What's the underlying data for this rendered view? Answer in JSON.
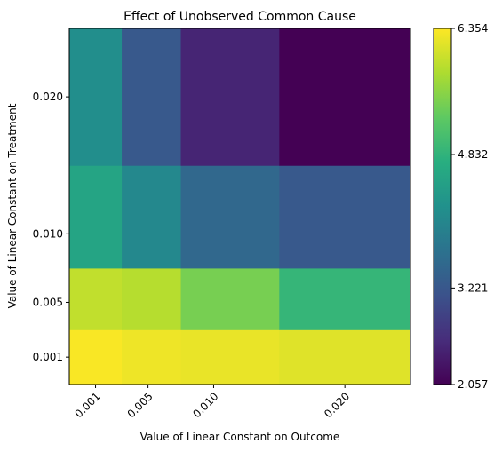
{
  "chart_data": {
    "type": "heatmap",
    "title": "Effect of Unobserved Common Cause",
    "xlabel": "Value of Linear Constant on Outcome",
    "ylabel": "Value of Linear Constant on Treatment",
    "x": [
      0.001,
      0.005,
      0.01,
      0.02
    ],
    "y": [
      0.001,
      0.005,
      0.01,
      0.02
    ],
    "xtick_labels": [
      "0.001",
      "0.005",
      "0.010",
      "0.020"
    ],
    "ytick_labels": [
      "0.001",
      "0.005",
      "0.010",
      "0.020"
    ],
    "values": [
      [
        6.33,
        6.25,
        6.22,
        6.15
      ],
      [
        5.95,
        5.88,
        5.45,
        4.88
      ],
      [
        4.55,
        4.05,
        3.5,
        3.25
      ],
      [
        4.15,
        3.25,
        2.5,
        2.06
      ]
    ],
    "colorbar": {
      "min": 2.057,
      "max": 6.354,
      "tick_values": [
        2.057,
        3.221,
        4.832,
        6.354
      ],
      "tick_labels": [
        "2.057",
        "3.221",
        "4.832",
        "6.354"
      ],
      "colormap": "viridis"
    },
    "grid": false
  }
}
